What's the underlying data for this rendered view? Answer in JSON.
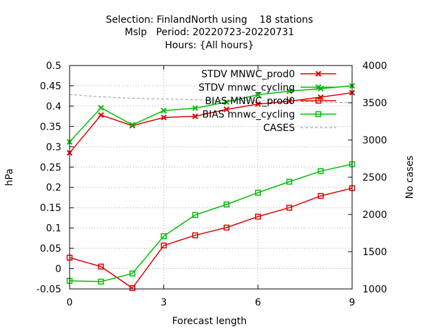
{
  "chart_data": {
    "type": "line",
    "title_lines": [
      "Selection: FinlandNorth using    18 stations",
      "Mslp   Period: 20220723-20220731",
      "Hours: {All hours}"
    ],
    "xlabel": "Forecast length",
    "ylabel": "hPa",
    "y2label": "No cases",
    "xlim": [
      0,
      9
    ],
    "ylim": [
      -0.05,
      0.5
    ],
    "y2lim": [
      1000,
      4000
    ],
    "x_ticks": [
      0,
      3,
      6,
      9
    ],
    "y_ticks": [
      -0.05,
      0,
      0.05,
      0.1,
      0.15,
      0.2,
      0.25,
      0.3,
      0.35,
      0.4,
      0.45,
      0.5
    ],
    "y_tick_labels": [
      "-0.05",
      "0",
      "0.05",
      "0.1",
      "0.15",
      "0.2",
      "0.25",
      "0.3",
      "0.35",
      "0.4",
      "0.45",
      "0.5"
    ],
    "y2_ticks": [
      1000,
      1500,
      2000,
      2500,
      3000,
      3500,
      4000
    ],
    "grid": true,
    "legend_position": "top-right",
    "x": [
      0,
      1,
      2,
      3,
      4,
      5,
      6,
      7,
      8,
      9
    ],
    "series": [
      {
        "name": "STDV MNWC_prod0",
        "axis": "y",
        "marker": "x",
        "dashed": false,
        "color": "#dd0000",
        "values": [
          0.285,
          0.378,
          0.352,
          0.372,
          0.375,
          0.392,
          0.405,
          0.412,
          0.422,
          0.433
        ]
      },
      {
        "name": "STDV mnwc_cycling",
        "axis": "y",
        "marker": "x",
        "dashed": false,
        "color": "#00bb00",
        "values": [
          0.312,
          0.396,
          0.354,
          0.389,
          0.395,
          0.41,
          0.428,
          0.437,
          0.443,
          0.45
        ]
      },
      {
        "name": "BIAS MNWC_prod0",
        "axis": "y",
        "marker": "square",
        "dashed": false,
        "color": "#dd0000",
        "values": [
          0.027,
          0.005,
          -0.048,
          0.057,
          0.082,
          0.101,
          0.128,
          0.15,
          0.179,
          0.198
        ]
      },
      {
        "name": "BIAS mnwc_cycling",
        "axis": "y",
        "marker": "square",
        "dashed": false,
        "color": "#00bb00",
        "values": [
          -0.03,
          -0.032,
          -0.012,
          0.08,
          0.132,
          0.158,
          0.187,
          0.214,
          0.24,
          0.257
        ]
      },
      {
        "name": "CASES",
        "axis": "y2",
        "marker": "none",
        "dashed": true,
        "color": "#999999",
        "values": [
          3610,
          3580,
          3560,
          3550,
          3540,
          3530,
          3530,
          3520,
          3510,
          3500
        ]
      }
    ]
  }
}
